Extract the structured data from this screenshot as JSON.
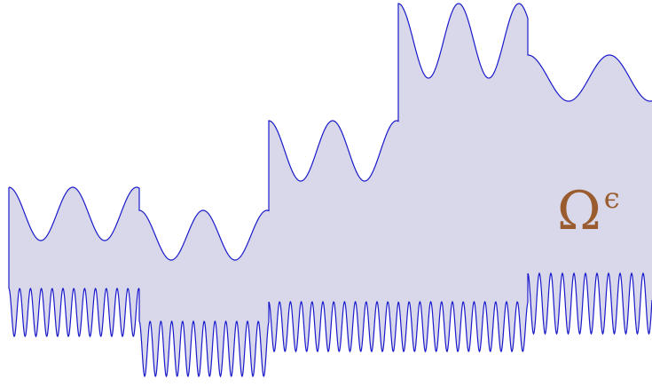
{
  "diagram": {
    "label_main": "Ω",
    "label_superscript": "ϵ",
    "colors": {
      "fill": "#d8d8ea",
      "stroke": "#1a1acc",
      "label": "#9a5c2e",
      "background": "#ffffff"
    }
  }
}
